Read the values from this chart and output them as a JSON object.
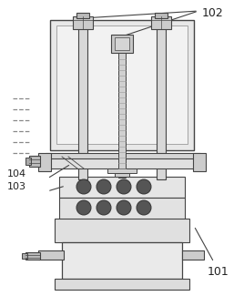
{
  "line_color": "#444444",
  "dark_color": "#222222",
  "label_102": "102",
  "label_101": "101",
  "label_104": "104",
  "label_103": "103",
  "figsize": [
    2.68,
    3.25
  ],
  "dpi": 100
}
